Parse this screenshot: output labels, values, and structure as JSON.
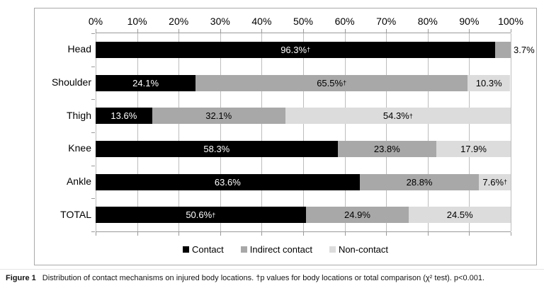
{
  "figure": {
    "caption_label": "Figure 1",
    "caption_text": "Distribution of contact mechanisms on injured body locations. †p values for body locations or total comparison (χ² test). p<0.001."
  },
  "chart_data": {
    "type": "bar",
    "orientation": "horizontal",
    "stacked": true,
    "title": "",
    "xlabel": "",
    "ylabel": "",
    "xlim": [
      0,
      100
    ],
    "grid": true,
    "legend_position": "bottom",
    "x_ticks": [
      "0%",
      "10%",
      "20%",
      "30%",
      "40%",
      "50%",
      "60%",
      "70%",
      "80%",
      "90%",
      "100%"
    ],
    "categories": [
      "Head",
      "Shoulder",
      "Thigh",
      "Knee",
      "Ankle",
      "TOTAL"
    ],
    "series": [
      {
        "name": "Contact",
        "color": "#000000",
        "text_color": "#ffffff",
        "values": [
          96.3,
          24.1,
          13.6,
          58.3,
          63.6,
          50.6
        ],
        "labels": [
          "96.3%†",
          "24.1%",
          "13.6%",
          "58.3%",
          "63.6%",
          "50.6%†"
        ]
      },
      {
        "name": "Indirect contact",
        "color": "#a8a8a8",
        "text_color": "#000000",
        "values": [
          3.7,
          65.5,
          32.1,
          23.8,
          28.8,
          24.9
        ],
        "labels": [
          "3.7%",
          "65.5%†",
          "32.1%",
          "23.8%",
          "28.8%",
          "24.9%"
        ]
      },
      {
        "name": "Non-contact",
        "color": "#dcdcdc",
        "text_color": "#000000",
        "values": [
          0,
          10.3,
          54.3,
          17.9,
          7.6,
          24.5
        ],
        "labels": [
          "",
          "10.3%",
          "54.3%†",
          "17.9%",
          "7.6%†",
          "24.5%"
        ]
      }
    ]
  }
}
